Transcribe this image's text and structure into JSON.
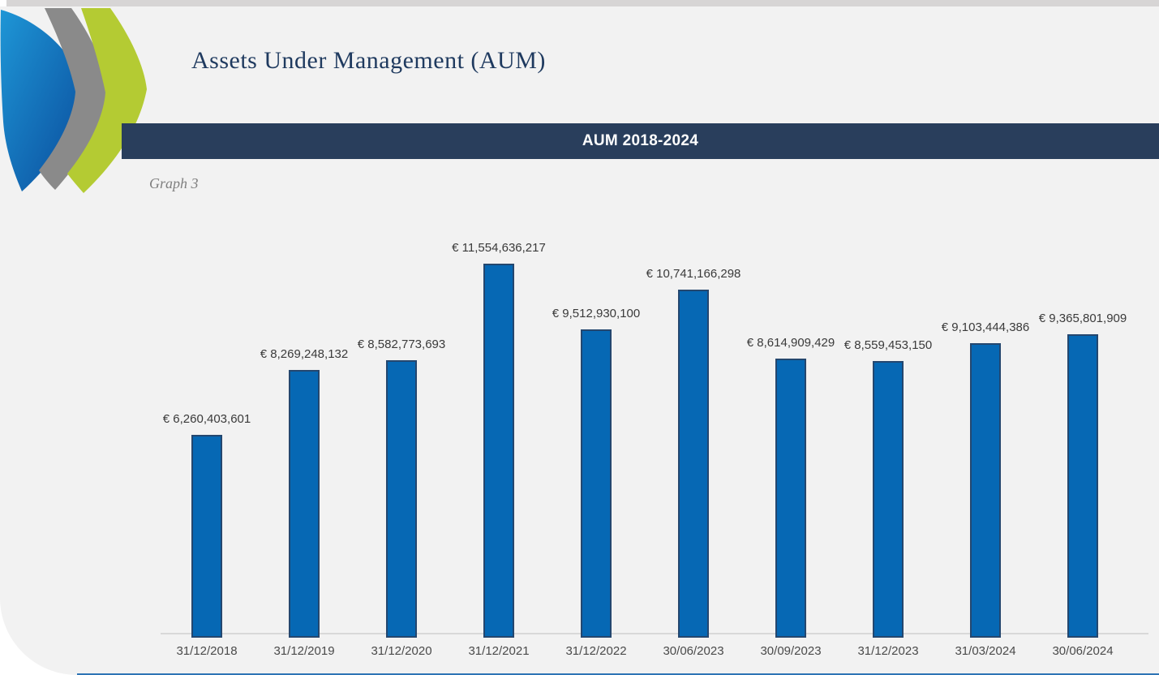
{
  "header": {
    "title": "Assets Under Management (AUM)"
  },
  "logo": {
    "name": "triple-chevron-logo",
    "blue": "#0E63B2",
    "blue_light": "#1E96D6",
    "blue_dark": "#0A4C9C",
    "gray": "#8A8A8A",
    "green": "#B4CB33"
  },
  "section": {
    "banner_title": "AUM 2018-2024",
    "caption": "Graph 3"
  },
  "chart_data": {
    "type": "bar",
    "title": "AUM 2018-2024",
    "categories": [
      "31/12/2018",
      "31/12/2019",
      "31/12/2020",
      "31/12/2021",
      "31/12/2022",
      "30/06/2023",
      "30/09/2023",
      "31/12/2023",
      "31/03/2024",
      "30/06/2024"
    ],
    "values": [
      6260403601,
      8269248132,
      8582773693,
      11554636217,
      9512930100,
      10741166298,
      8614909429,
      8559453150,
      9103444386,
      9365801909
    ],
    "data_labels": [
      "€ 6,260,403,601",
      "€ 8,269,248,132",
      "€ 8,582,773,693",
      "€ 11,554,636,217",
      "€ 9,512,930,100",
      "€ 10,741,166,298",
      "€ 8,614,909,429",
      "€ 8,559,453,150",
      "€ 9,103,444,386",
      "€ 9,365,801,909"
    ],
    "currency": "EUR",
    "xlabel": "",
    "ylabel": "",
    "ylim": [
      0,
      11554636217
    ],
    "grid": false,
    "legend": null,
    "bar_color": "#0668B4",
    "bar_border_color": "#24476F"
  },
  "colors": {
    "background": "#F2F2F2",
    "top_strip": "#D7D5D5",
    "banner_bg": "#293E5C",
    "banner_text": "#FFFFFF",
    "title_text": "#1F3A5F",
    "caption_text": "#7F7F7F",
    "data_label_text": "#3A3A3A",
    "axis_label_text": "#4A4A4A",
    "axis_line": "#D8D8D8",
    "bottom_accent_line": "#2E74B5"
  }
}
